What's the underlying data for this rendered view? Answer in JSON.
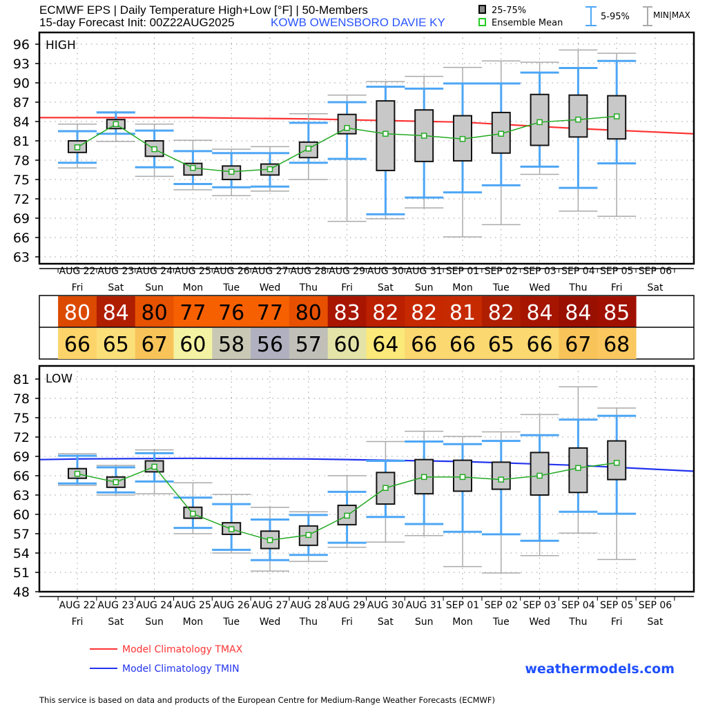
{
  "header": {
    "title_line1": "ECMWF EPS | Daily Temperature High+Low [°F] | 50-Members",
    "title_line2": "15-day Forecast Init: 00Z22AUG2025",
    "station": "KOWB  OWENSBORO DAVIE KY",
    "legend_box": "25-75%",
    "legend_mean": "Ensemble Mean",
    "legend_p5_95": "5-95%",
    "legend_minmax": "MIN|MAX"
  },
  "colors": {
    "box_fill": "#c8c8c8",
    "mean": "#22aa22",
    "whisker_5_95": "#4da6f5",
    "whisker_minmax": "#aaaaaa",
    "tmax_clim": "#ff3333",
    "tmin_clim": "#2233ee",
    "station": "#2a55ff",
    "brand": "#1f4fff"
  },
  "days": {
    "dates": [
      "AUG 22",
      "AUG 23",
      "AUG 24",
      "AUG 25",
      "AUG 26",
      "AUG 27",
      "AUG 28",
      "AUG 29",
      "AUG 30",
      "AUG 31",
      "SEP 01",
      "SEP 02",
      "SEP 03",
      "SEP 04",
      "SEP 05",
      "SEP 06"
    ],
    "weekdays": [
      "Fri",
      "Sat",
      "Sun",
      "Mon",
      "Tue",
      "Wed",
      "Thu",
      "Fri",
      "Sat",
      "Sun",
      "Mon",
      "Tue",
      "Wed",
      "Thu",
      "Fri",
      "Sat"
    ]
  },
  "table": {
    "high": {
      "values": [
        "80",
        "84",
        "80",
        "77",
        "76",
        "77",
        "80",
        "83",
        "82",
        "82",
        "81",
        "82",
        "84",
        "84",
        "85"
      ],
      "colors": [
        "#dc4a00",
        "#b01e00",
        "#e65200",
        "#f76000",
        "#f76000",
        "#f76000",
        "#e65000",
        "#a81500",
        "#bb2000",
        "#c62800",
        "#c62a00",
        "#b01e00",
        "#a51500",
        "#990f00",
        "#a01000"
      ],
      "text_colors": [
        "#ffffff",
        "#ffffff",
        "#000000",
        "#000000",
        "#000000",
        "#000000",
        "#000000",
        "#ffffff",
        "#ffffff",
        "#ffffff",
        "#ffffff",
        "#ffffff",
        "#ffffff",
        "#ffffff",
        "#ffffff"
      ]
    },
    "low": {
      "values": [
        "66",
        "65",
        "67",
        "60",
        "58",
        "56",
        "57",
        "60",
        "64",
        "66",
        "66",
        "65",
        "66",
        "67",
        "68"
      ],
      "colors": [
        "#fcd46a",
        "#fbe07a",
        "#f8c459",
        "#f3f3a3",
        "#c8c8b4",
        "#b0b0c0",
        "#c0c0b8",
        "#e4e4a8",
        "#fbe97a",
        "#fcd870",
        "#fcd870",
        "#fcd870",
        "#fcd870",
        "#f8c459",
        "#fbc860"
      ]
    }
  },
  "chart_data": [
    {
      "type": "boxplot",
      "title": "HIGH",
      "ylim": [
        63,
        96
      ],
      "yticks": [
        96,
        93,
        90,
        87,
        84,
        81,
        78,
        75,
        72,
        69,
        66,
        63
      ],
      "grid": true,
      "categories": [
        "AUG 22",
        "AUG 23",
        "AUG 24",
        "AUG 25",
        "AUG 26",
        "AUG 27",
        "AUG 28",
        "AUG 29",
        "AUG 30",
        "AUG 31",
        "SEP 01",
        "SEP 02",
        "SEP 03",
        "SEP 04",
        "SEP 05"
      ],
      "min": [
        76.8,
        80.9,
        75.5,
        73.4,
        72.5,
        73.2,
        75.0,
        68.5,
        68.9,
        70.6,
        66.1,
        68.0,
        75.8,
        70.1,
        69.3
      ],
      "p5": [
        77.6,
        82.1,
        76.9,
        74.3,
        73.8,
        73.9,
        77.6,
        78.2,
        69.6,
        72.2,
        73.0,
        74.1,
        77.0,
        73.7,
        77.5
      ],
      "q25": [
        79.2,
        82.9,
        78.6,
        75.7,
        75.0,
        75.7,
        78.4,
        82.1,
        76.4,
        77.8,
        77.9,
        79.1,
        80.3,
        81.6,
        81.3
      ],
      "mean": [
        80.0,
        83.6,
        79.7,
        76.8,
        76.2,
        76.6,
        79.8,
        83.0,
        82.1,
        81.8,
        81.3,
        82.1,
        83.9,
        84.3,
        84.8
      ],
      "q75": [
        81.0,
        84.3,
        81.0,
        77.5,
        77.1,
        77.4,
        80.8,
        85.1,
        87.2,
        85.8,
        84.9,
        85.4,
        88.2,
        88.1,
        88.0
      ],
      "p95": [
        82.5,
        85.4,
        82.6,
        79.4,
        79.1,
        79.1,
        83.8,
        87.0,
        89.4,
        89.1,
        89.9,
        89.9,
        91.6,
        92.3,
        93.4
      ],
      "max": [
        83.6,
        85.5,
        83.6,
        81.1,
        79.7,
        80.1,
        85.2,
        88.1,
        90.2,
        91.0,
        92.4,
        93.4,
        93.2,
        95.1,
        94.6
      ],
      "climatology": {
        "name": "Model Climatology TMAX",
        "x": [
          "start",
          "AUG 22",
          "AUG 25",
          "AUG 28",
          "SEP 01",
          "SEP 04",
          "end"
        ],
        "values": [
          84.6,
          84.6,
          84.6,
          84.4,
          83.9,
          82.9,
          82.1
        ]
      }
    },
    {
      "type": "boxplot",
      "title": "LOW",
      "ylim": [
        48,
        81
      ],
      "yticks": [
        81,
        78,
        75,
        72,
        69,
        66,
        63,
        60,
        57,
        54,
        51,
        48
      ],
      "grid": true,
      "categories": [
        "AUG 22",
        "AUG 23",
        "AUG 24",
        "AUG 25",
        "AUG 26",
        "AUG 27",
        "AUG 28",
        "AUG 29",
        "AUG 30",
        "AUG 31",
        "SEP 01",
        "SEP 02",
        "SEP 03",
        "SEP 04",
        "SEP 05"
      ],
      "min": [
        64.5,
        63.0,
        63.2,
        57.0,
        54.0,
        51.2,
        52.7,
        54.9,
        55.7,
        56.7,
        51.9,
        50.9,
        53.6,
        57.1,
        53.0
      ],
      "p5": [
        64.8,
        63.4,
        65.1,
        57.9,
        54.5,
        52.9,
        53.7,
        55.6,
        59.6,
        58.5,
        57.3,
        56.9,
        55.9,
        60.4,
        60.1
      ],
      "q25": [
        65.6,
        64.2,
        66.6,
        59.4,
        56.9,
        54.7,
        55.2,
        58.4,
        61.6,
        63.2,
        63.6,
        63.9,
        63.0,
        63.4,
        65.4
      ],
      "mean": [
        66.3,
        65.0,
        67.4,
        60.1,
        57.7,
        56.0,
        56.8,
        59.8,
        64.1,
        65.8,
        65.8,
        65.4,
        66.0,
        67.2,
        68.0
      ],
      "q75": [
        67.1,
        65.8,
        68.3,
        61.1,
        58.7,
        57.4,
        58.2,
        61.4,
        66.5,
        68.5,
        68.4,
        68.1,
        69.6,
        70.3,
        71.4
      ],
      "p95": [
        69.1,
        67.3,
        69.5,
        62.6,
        61.6,
        59.2,
        59.9,
        63.5,
        68.3,
        71.3,
        70.9,
        71.4,
        72.3,
        74.7,
        75.3
      ],
      "max": [
        69.4,
        67.6,
        70.0,
        64.9,
        63.1,
        61.1,
        60.4,
        66.0,
        71.3,
        72.9,
        72.1,
        72.8,
        75.5,
        79.8,
        76.5
      ],
      "climatology": {
        "name": "Model Climatology TMIN",
        "x": [
          "start",
          "AUG 22",
          "AUG 25",
          "AUG 28",
          "SEP 01",
          "SEP 04",
          "end"
        ],
        "values": [
          68.5,
          68.6,
          68.7,
          68.6,
          68.2,
          67.6,
          66.7
        ]
      }
    }
  ],
  "footer": {
    "legend_tmax": "Model Climatology TMAX",
    "legend_tmin": "Model Climatology TMIN",
    "brand": "weathermodels.com",
    "disclaimer": "This service is based on data and products of the European Centre for Medium-Range Weather Forecasts (ECMWF)"
  }
}
